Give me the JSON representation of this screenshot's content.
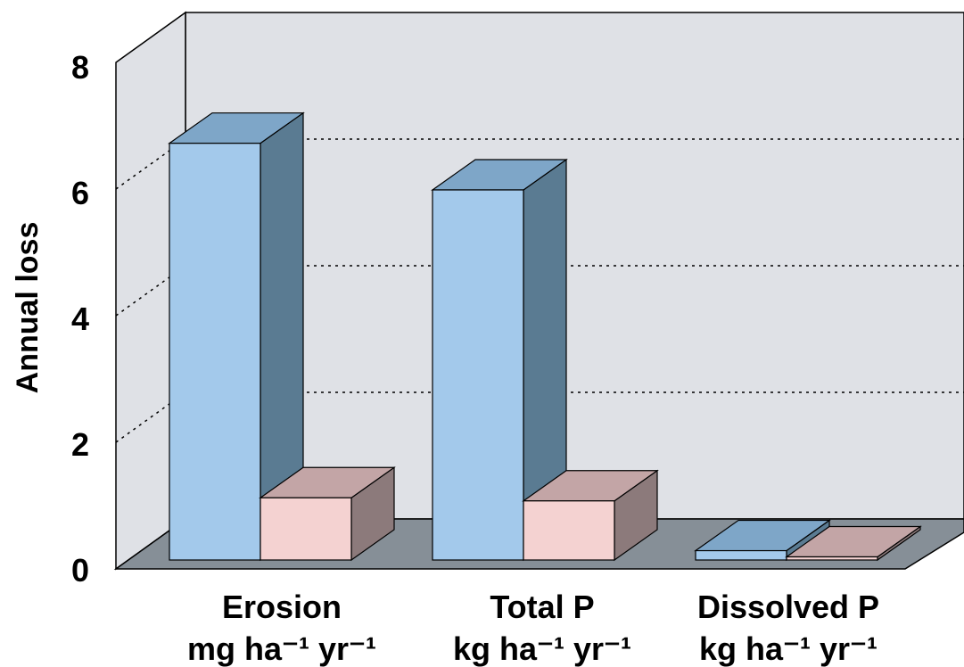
{
  "chart_data": {
    "type": "bar",
    "title": "",
    "ylabel": "Annual loss",
    "ylim": [
      0,
      8
    ],
    "y_ticks": [
      "0",
      "2",
      "4",
      "6",
      "8"
    ],
    "categories": [
      {
        "name": "Erosion",
        "unit": "mg ha⁻¹ yr⁻¹"
      },
      {
        "name": "Total P",
        "unit": "kg ha⁻¹ yr⁻¹"
      },
      {
        "name": "Dissolved P",
        "unit": "kg ha⁻¹ yr⁻¹"
      }
    ],
    "series": [
      {
        "values": [
          6.7,
          5.95,
          0.15
        ],
        "color": "#a3c9eb",
        "top_color": "#7ea6c8",
        "side_color": "#5a7b92"
      },
      {
        "values": [
          1.0,
          0.95,
          0.05
        ],
        "color": "#f4d2d1",
        "top_color": "#c3a5a6",
        "side_color": "#8c7a7b"
      }
    ],
    "grid": true,
    "legend": "none",
    "wall_color": "#dfe1e6",
    "floor_color": "#868f97"
  }
}
